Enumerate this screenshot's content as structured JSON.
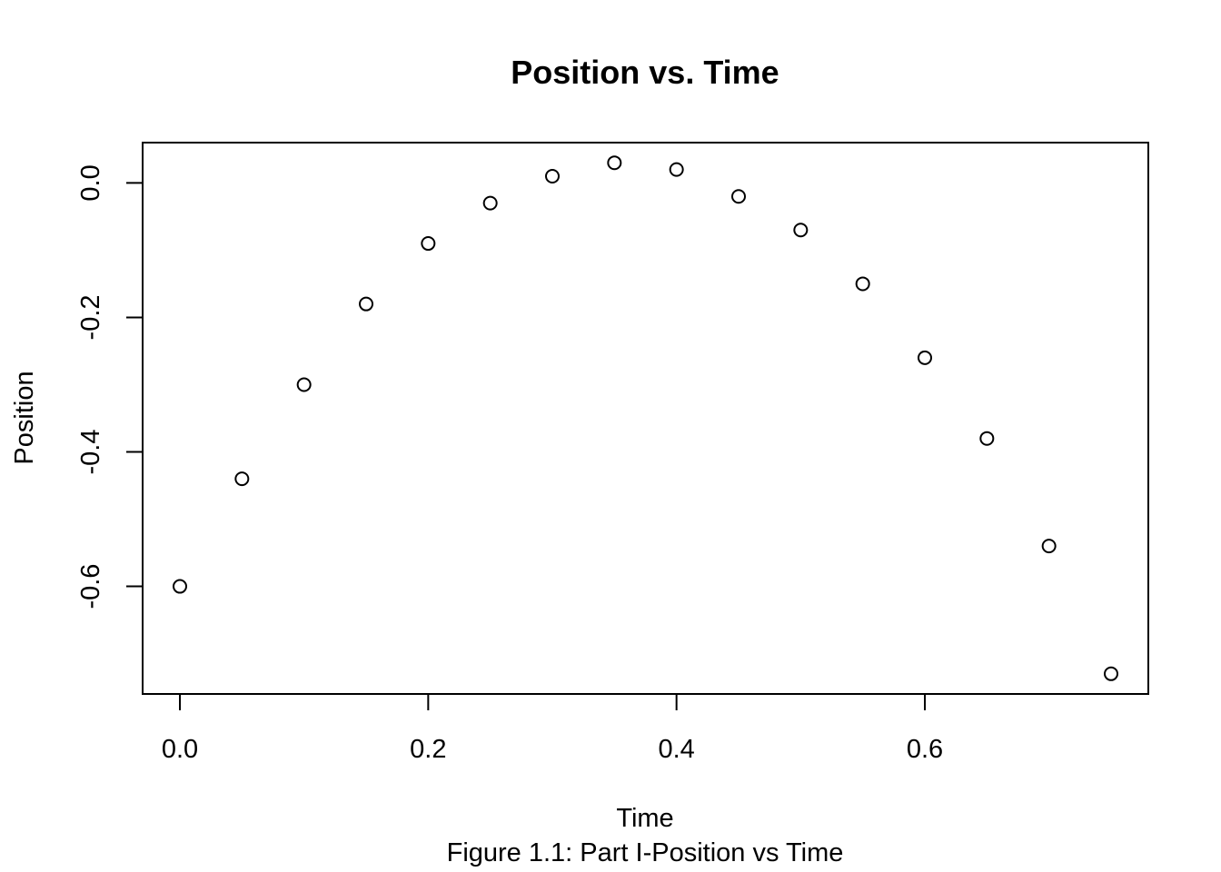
{
  "chart_data": {
    "type": "scatter",
    "title": "Position vs. Time",
    "xlabel": "Time",
    "ylabel": "Position",
    "caption": "Figure 1.1: Part I-Position vs Time",
    "xlim": [
      -0.03,
      0.78
    ],
    "ylim": [
      -0.76,
      0.06
    ],
    "x_ticks": [
      0.0,
      0.2,
      0.4,
      0.6
    ],
    "x_tick_labels": [
      "0.0",
      "0.2",
      "0.4",
      "0.6"
    ],
    "y_ticks": [
      0.0,
      -0.2,
      -0.4,
      -0.6
    ],
    "y_tick_labels": [
      "0.0",
      "-0.2",
      "-0.4",
      "-0.6"
    ],
    "grid": false,
    "legend": "none",
    "marker": "open-circle",
    "colors": {
      "marker": "#000000",
      "axes": "#000000",
      "background": "#ffffff"
    },
    "x": [
      0.0,
      0.05,
      0.1,
      0.15,
      0.2,
      0.25,
      0.3,
      0.35,
      0.4,
      0.45,
      0.5,
      0.55,
      0.6,
      0.65,
      0.7,
      0.75
    ],
    "y": [
      -0.6,
      -0.44,
      -0.3,
      -0.18,
      -0.09,
      -0.03,
      0.01,
      0.03,
      0.02,
      -0.02,
      -0.07,
      -0.15,
      -0.26,
      -0.38,
      -0.54,
      -0.73
    ]
  }
}
